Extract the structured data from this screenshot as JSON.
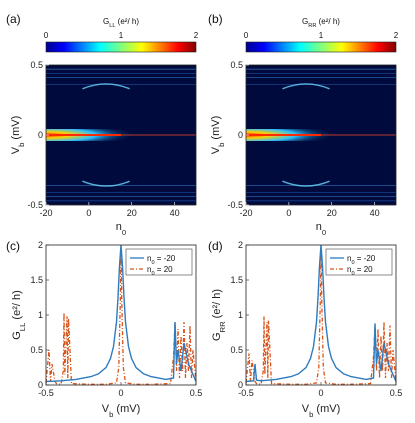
{
  "chart_data": [
    {
      "panel": "(a)",
      "type": "heatmap",
      "colorbar": {
        "label_main": "G",
        "label_sub": "LL",
        "label_rest": " (e²/ h)",
        "ticks": [
          "0",
          "1",
          "2"
        ],
        "range": [
          0,
          2
        ]
      },
      "xlabel_main": "n",
      "xlabel_sub": "0",
      "ylabel_main": "V",
      "ylabel_sub": "b",
      "ylabel_rest": " (mV)",
      "xlim": [
        -20,
        50
      ],
      "ylim": [
        -0.5,
        0.5
      ],
      "xticks": [
        "-20",
        "0",
        "20",
        "40"
      ],
      "yticks": [
        "-0.5",
        "0",
        "0.5"
      ],
      "description_values": {
        "zero_bias_peak_G": 2.0,
        "zero_bias_peak_fades_at_n0": 15
      }
    },
    {
      "panel": "(b)",
      "type": "heatmap",
      "colorbar": {
        "label_main": "G",
        "label_sub": "RR",
        "label_rest": "  (e²/ h)",
        "ticks": [
          "0",
          "1",
          "2"
        ],
        "range": [
          0,
          2
        ]
      },
      "xlabel_main": "n",
      "xlabel_sub": "0",
      "ylabel_main": "V",
      "ylabel_sub": "b",
      "ylabel_rest": " (mV)",
      "xlim": [
        -20,
        50
      ],
      "ylim": [
        -0.5,
        0.5
      ],
      "xticks": [
        "-20",
        "0",
        "20",
        "40"
      ],
      "yticks": [
        "-0.5",
        "0",
        "0.5"
      ]
    },
    {
      "panel": "(c)",
      "type": "line",
      "xlabel_main": "V",
      "xlabel_sub": "b",
      "xlabel_rest": " (mV)",
      "ylabel_main": "G",
      "ylabel_sub": "LL",
      "ylabel_rest": " (e²/ h)",
      "xlim": [
        -0.5,
        0.5
      ],
      "ylim": [
        0,
        2
      ],
      "xticks": [
        "-0.5",
        "0",
        "0.5"
      ],
      "yticks": [
        "0",
        "0.5",
        "1",
        "1.5",
        "2"
      ],
      "legend": "top-right",
      "series": [
        {
          "name_main": "n",
          "name_sub": "0",
          "name_rest": " = -20",
          "color": "#2e7bbf",
          "style": "solid",
          "x": [
            -0.5,
            -0.4,
            -0.3,
            -0.2,
            -0.15,
            -0.1,
            -0.07,
            -0.05,
            -0.03,
            -0.02,
            -0.01,
            0,
            0.01,
            0.02,
            0.03,
            0.05,
            0.07,
            0.1,
            0.15,
            0.2,
            0.3,
            0.35,
            0.36,
            0.37,
            0.38,
            0.4,
            0.42,
            0.45,
            0.48,
            0.5
          ],
          "y": [
            0.05,
            0.06,
            0.08,
            0.12,
            0.16,
            0.25,
            0.38,
            0.55,
            0.9,
            1.25,
            1.7,
            2.0,
            1.7,
            1.25,
            0.9,
            0.55,
            0.38,
            0.25,
            0.16,
            0.12,
            0.08,
            0.1,
            0.9,
            0.3,
            0.5,
            0.2,
            0.6,
            0.3,
            0.15,
            0.05
          ]
        },
        {
          "name_main": "n",
          "name_sub": "0",
          "name_rest": " = 20",
          "color": "#d95319",
          "style": "dash-dot",
          "x": [
            -0.5,
            -0.48,
            -0.47,
            -0.46,
            -0.44,
            -0.43,
            -0.4,
            -0.385,
            -0.38,
            -0.375,
            -0.36,
            -0.355,
            -0.35,
            -0.33,
            -0.2,
            -0.1,
            -0.03,
            -0.015,
            -0.005,
            0,
            0.005,
            0.015,
            0.03,
            0.1,
            0.2,
            0.33,
            0.35,
            0.36,
            0.37,
            0.38,
            0.39,
            0.4,
            0.41,
            0.42,
            0.43,
            0.44,
            0.45,
            0.46,
            0.47,
            0.48,
            0.5
          ],
          "y": [
            0.03,
            0.5,
            0.05,
            0.3,
            0.05,
            0.02,
            0.01,
            0.2,
            1.03,
            0.15,
            0.98,
            0.1,
            0.95,
            0.02,
            0.01,
            0.01,
            0.03,
            0.25,
            1.2,
            1.95,
            1.2,
            0.25,
            0.03,
            0.01,
            0.01,
            0.02,
            0.4,
            0.9,
            0.2,
            0.8,
            0.1,
            0.7,
            0.2,
            0.9,
            0.1,
            0.6,
            0.2,
            0.85,
            0.1,
            0.5,
            0.05
          ]
        }
      ]
    },
    {
      "panel": "(d)",
      "type": "line",
      "xlabel_main": "V",
      "xlabel_sub": "b",
      "xlabel_rest": " (mV)",
      "ylabel_main": "G",
      "ylabel_sub": "RR",
      "ylabel_rest": " (e²/ h)",
      "xlim": [
        -0.5,
        0.5
      ],
      "ylim": [
        0,
        2
      ],
      "xticks": [
        "-0.5",
        "0",
        "0.5"
      ],
      "yticks": [
        "0",
        "0.5",
        "1",
        "1.5",
        "2"
      ],
      "legend": "top-right",
      "series": [
        {
          "name_main": "n",
          "name_sub": "0",
          "name_rest": " = -20",
          "color": "#2e7bbf",
          "style": "solid",
          "x": [
            -0.5,
            -0.45,
            -0.44,
            -0.43,
            -0.4,
            -0.3,
            -0.2,
            -0.15,
            -0.1,
            -0.07,
            -0.05,
            -0.03,
            -0.02,
            -0.01,
            0,
            0.01,
            0.02,
            0.03,
            0.05,
            0.07,
            0.1,
            0.15,
            0.2,
            0.3,
            0.35,
            0.36,
            0.37,
            0.38,
            0.4,
            0.42,
            0.45,
            0.48,
            0.5
          ],
          "y": [
            0.05,
            0.06,
            0.3,
            0.07,
            0.06,
            0.08,
            0.12,
            0.16,
            0.25,
            0.38,
            0.55,
            0.9,
            1.25,
            1.7,
            2.0,
            1.7,
            1.25,
            0.9,
            0.55,
            0.38,
            0.25,
            0.16,
            0.12,
            0.08,
            0.1,
            0.88,
            0.3,
            0.5,
            0.2,
            0.6,
            0.3,
            0.15,
            0.05
          ]
        },
        {
          "name_main": "n",
          "name_sub": "0",
          "name_rest": " = 20",
          "color": "#d95319",
          "style": "dash-dot",
          "x": [
            -0.5,
            -0.48,
            -0.47,
            -0.46,
            -0.44,
            -0.43,
            -0.4,
            -0.385,
            -0.38,
            -0.375,
            -0.36,
            -0.355,
            -0.35,
            -0.33,
            -0.2,
            -0.1,
            -0.03,
            -0.015,
            -0.005,
            0,
            0.005,
            0.015,
            0.03,
            0.1,
            0.2,
            0.33,
            0.35,
            0.36,
            0.37,
            0.38,
            0.39,
            0.4,
            0.41,
            0.42,
            0.43,
            0.44,
            0.45,
            0.46,
            0.47,
            0.48,
            0.5
          ],
          "y": [
            0.03,
            0.45,
            0.05,
            0.35,
            0.05,
            0.02,
            0.01,
            0.2,
            0.98,
            0.15,
            0.9,
            0.1,
            0.92,
            0.02,
            0.01,
            0.01,
            0.03,
            0.25,
            1.2,
            1.95,
            1.2,
            0.25,
            0.03,
            0.01,
            0.01,
            0.02,
            0.4,
            0.85,
            0.2,
            0.8,
            0.1,
            0.7,
            0.2,
            0.9,
            0.1,
            0.6,
            0.2,
            0.85,
            0.1,
            0.5,
            0.05
          ]
        }
      ]
    }
  ]
}
